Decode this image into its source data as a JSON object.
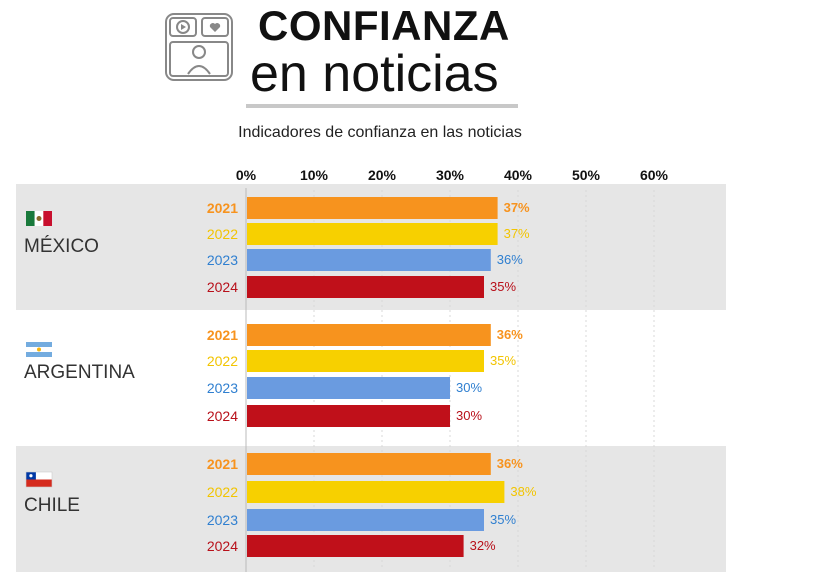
{
  "header": {
    "title_line1": "CONFIANZA",
    "title_line2": "en noticias",
    "logo_icon": "news-broadcast-icon"
  },
  "chart_data": {
    "type": "bar",
    "orientation": "horizontal",
    "subtitle": "Indicadores de confianza en las noticias",
    "xlim": [
      0,
      60
    ],
    "x_ticks": [
      "0%",
      "10%",
      "20%",
      "30%",
      "40%",
      "50%",
      "60%"
    ],
    "grid": true,
    "series": [
      {
        "name": "2021",
        "color": "#f7931e"
      },
      {
        "name": "2022",
        "color": "#f7d000"
      },
      {
        "name": "2023",
        "color": "#6a9be0"
      },
      {
        "name": "2024",
        "color": "#c0101a"
      }
    ],
    "groups": [
      {
        "country": "MÉXICO",
        "flag": "mexico-flag-icon",
        "values": [
          37,
          37,
          36,
          35
        ],
        "labels": [
          "37%",
          "37%",
          "36%",
          "35%"
        ]
      },
      {
        "country": "ARGENTINA",
        "flag": "argentina-flag-icon",
        "values": [
          36,
          35,
          30,
          30
        ],
        "labels": [
          "36%",
          "35%",
          "30%",
          "30%"
        ]
      },
      {
        "country": "CHILE",
        "flag": "chile-flag-icon",
        "values": [
          36,
          38,
          35,
          32
        ],
        "labels": [
          "36%",
          "38%",
          "35%",
          "32%"
        ]
      }
    ],
    "label_colors": [
      "#f7931e",
      "#f2c400",
      "#2f7fd0",
      "#b8101a"
    ]
  }
}
